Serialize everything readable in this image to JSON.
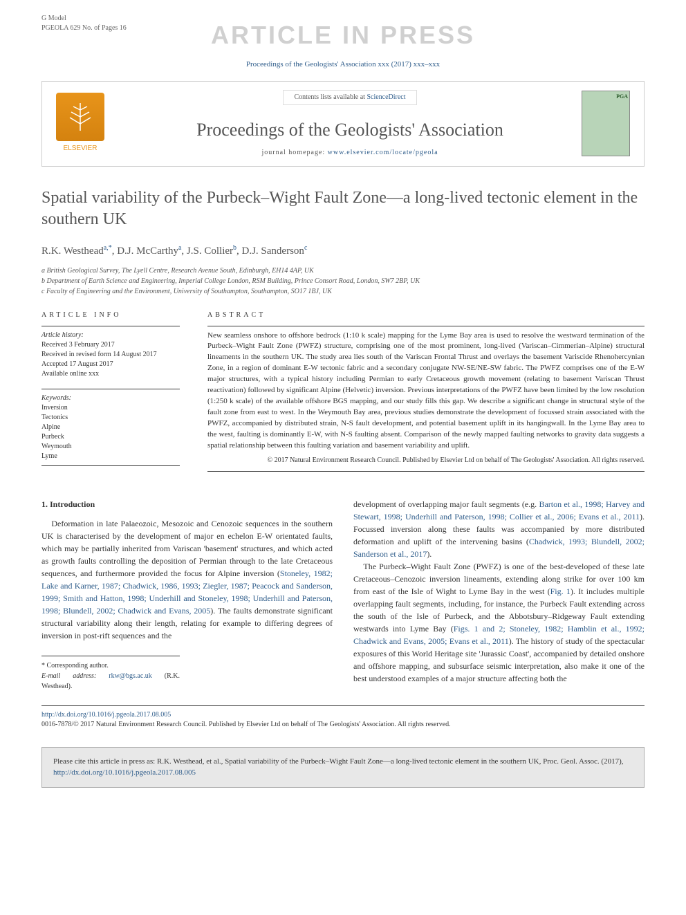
{
  "header": {
    "gmodel_line1": "G Model",
    "gmodel_line2": "PGEOLA 629 No. of Pages 16",
    "in_press": "ARTICLE IN PRESS",
    "proceedings_line": "Proceedings of the Geologists' Association xxx (2017) xxx–xxx"
  },
  "masthead": {
    "elsevier": "ELSEVIER",
    "contents_prefix": "Contents lists available at ",
    "contents_link": "ScienceDirect",
    "journal_title": "Proceedings of the Geologists' Association",
    "homepage_prefix": "journal homepage: ",
    "homepage_link": "www.elsevier.com/locate/pgeola",
    "cover_badge": "PGA"
  },
  "article": {
    "title": "Spatial variability of the Purbeck–Wight Fault Zone—a long-lived tectonic element in the southern UK",
    "authors_html": "R.K. Westhead<sup>a,*</sup>, D.J. McCarthy<sup>a</sup>, J.S. Collier<sup>b</sup>, D.J. Sanderson<sup>c</sup>",
    "affiliations": [
      "a British Geological Survey, The Lyell Centre, Research Avenue South, Edinburgh, EH14 4AP, UK",
      "b Department of Earth Science and Engineering, Imperial College London, RSM Building, Prince Consort Road, London, SW7 2BP, UK",
      "c Faculty of Engineering and the Environment, University of Southampton, Southampton, SO17 1BJ, UK"
    ]
  },
  "info": {
    "heading_info": "ARTICLE INFO",
    "history_label": "Article history:",
    "history": [
      "Received 3 February 2017",
      "Received in revised form 14 August 2017",
      "Accepted 17 August 2017",
      "Available online xxx"
    ],
    "keywords_label": "Keywords:",
    "keywords": [
      "Inversion",
      "Tectonics",
      "Alpine",
      "Purbeck",
      "Weymouth",
      "Lyme"
    ]
  },
  "abstract": {
    "heading": "ABSTRACT",
    "text": "New seamless onshore to offshore bedrock (1:10 k scale) mapping for the Lyme Bay area is used to resolve the westward termination of the Purbeck–Wight Fault Zone (PWFZ) structure, comprising one of the most prominent, long-lived (Variscan–Cimmerian–Alpine) structural lineaments in the southern UK. The study area lies south of the Variscan Frontal Thrust and overlays the basement Variscide Rhenohercynian Zone, in a region of dominant E-W tectonic fabric and a secondary conjugate NW-SE/NE-SW fabric. The PWFZ comprises one of the E-W major structures, with a typical history including Permian to early Cretaceous growth movement (relating to basement Variscan Thrust reactivation) followed by significant Alpine (Helvetic) inversion. Previous interpretations of the PWFZ have been limited by the low resolution (1:250 k scale) of the available offshore BGS mapping, and our study fills this gap. We describe a significant change in structural style of the fault zone from east to west. In the Weymouth Bay area, previous studies demonstrate the development of focussed strain associated with the PWFZ, accompanied by distributed strain, N-S fault development, and potential basement uplift in its hangingwall. In the Lyme Bay area to the west, faulting is dominantly E-W, with N-S faulting absent. Comparison of the newly mapped faulting networks to gravity data suggests a spatial relationship between this faulting variation and basement variability and uplift.",
    "copyright": "© 2017 Natural Environment Research Council. Published by Elsevier Ltd on behalf of The Geologists' Association. All rights reserved."
  },
  "body": {
    "section1_heading": "1. Introduction",
    "col1_para": "Deformation in late Palaeozoic, Mesozoic and Cenozoic sequences in the southern UK is characterised by the development of major en echelon E-W orientated faults, which may be partially inherited from Variscan 'basement' structures, and which acted as growth faults controlling the deposition of Permian through to the late Cretaceous sequences, and furthermore provided the focus for Alpine inversion (",
    "col1_refs1": "Stoneley, 1982; Lake and Karner, 1987; Chadwick, 1986, 1993; Ziegler, 1987; Peacock and Sanderson, 1999; Smith and Hatton, 1998; Underhill and Stoneley, 1998; Underhill and Paterson, 1998; Blundell, 2002; Chadwick and Evans, 2005",
    "col1_para_cont": "). The faults demonstrate significant structural variability along their length, relating for example to differing degrees of inversion in post-rift sequences and the",
    "col2_para1_a": "development of overlapping major fault segments (e.g. ",
    "col2_refs1": "Barton et al., 1998; Harvey and Stewart, 1998; Underhill and Paterson, 1998; Collier et al., 2006; Evans et al., 2011",
    "col2_para1_b": "). Focussed inversion along these faults was accompanied by more distributed deformation and uplift of the intervening basins (",
    "col2_refs2": "Chadwick, 1993; Blundell, 2002; Sanderson et al., 2017",
    "col2_para1_c": ").",
    "col2_para2_a": "The Purbeck–Wight Fault Zone (PWFZ) is one of the best-developed of these late Cretaceous–Cenozoic inversion lineaments, extending along strike for over 100 km from east of the Isle of Wight to Lyme Bay in the west (",
    "col2_fig1": "Fig. 1",
    "col2_para2_b": "). It includes multiple overlapping fault segments, including, for instance, the Purbeck Fault extending across the south of the Isle of Purbeck, and the Abbotsbury–Ridgeway Fault extending westwards into Lyme Bay (",
    "col2_refs3": "Figs. 1 and 2; Stoneley, 1982; Hamblin et al., 1992; Chadwick and Evans, 2005; Evans et al., 2011",
    "col2_para2_c": "). The history of study of the spectacular exposures of this World Heritage site 'Jurassic Coast', accompanied by detailed onshore and offshore mapping, and subsurface seismic interpretation, also make it one of the best understood examples of a major structure affecting both the"
  },
  "footnote": {
    "corr": "* Corresponding author.",
    "email_label": "E-mail address: ",
    "email": "rkw@bgs.ac.uk",
    "email_name": " (R.K. Westhead)."
  },
  "doi": {
    "link": "http://dx.doi.org/10.1016/j.pgeola.2017.08.005",
    "issn": "0016-7878/© 2017 Natural Environment Research Council. Published by Elsevier Ltd on behalf of The Geologists' Association. All rights reserved."
  },
  "citebox": {
    "text_a": "Please cite this article in press as: R.K. Westhead, et al., Spatial variability of the Purbeck–Wight Fault Zone—a long-lived tectonic element in the southern UK, Proc. Geol. Assoc. (2017), ",
    "link": "http://dx.doi.org/10.1016/j.pgeola.2017.08.005"
  },
  "colors": {
    "link": "#2e5c8a",
    "watermark": "#d0d0d0",
    "text": "#333333",
    "muted": "#555555",
    "elsevier": "#e8941a",
    "cover": "#b8d4b8",
    "citebox_bg": "#e8e8e8"
  }
}
